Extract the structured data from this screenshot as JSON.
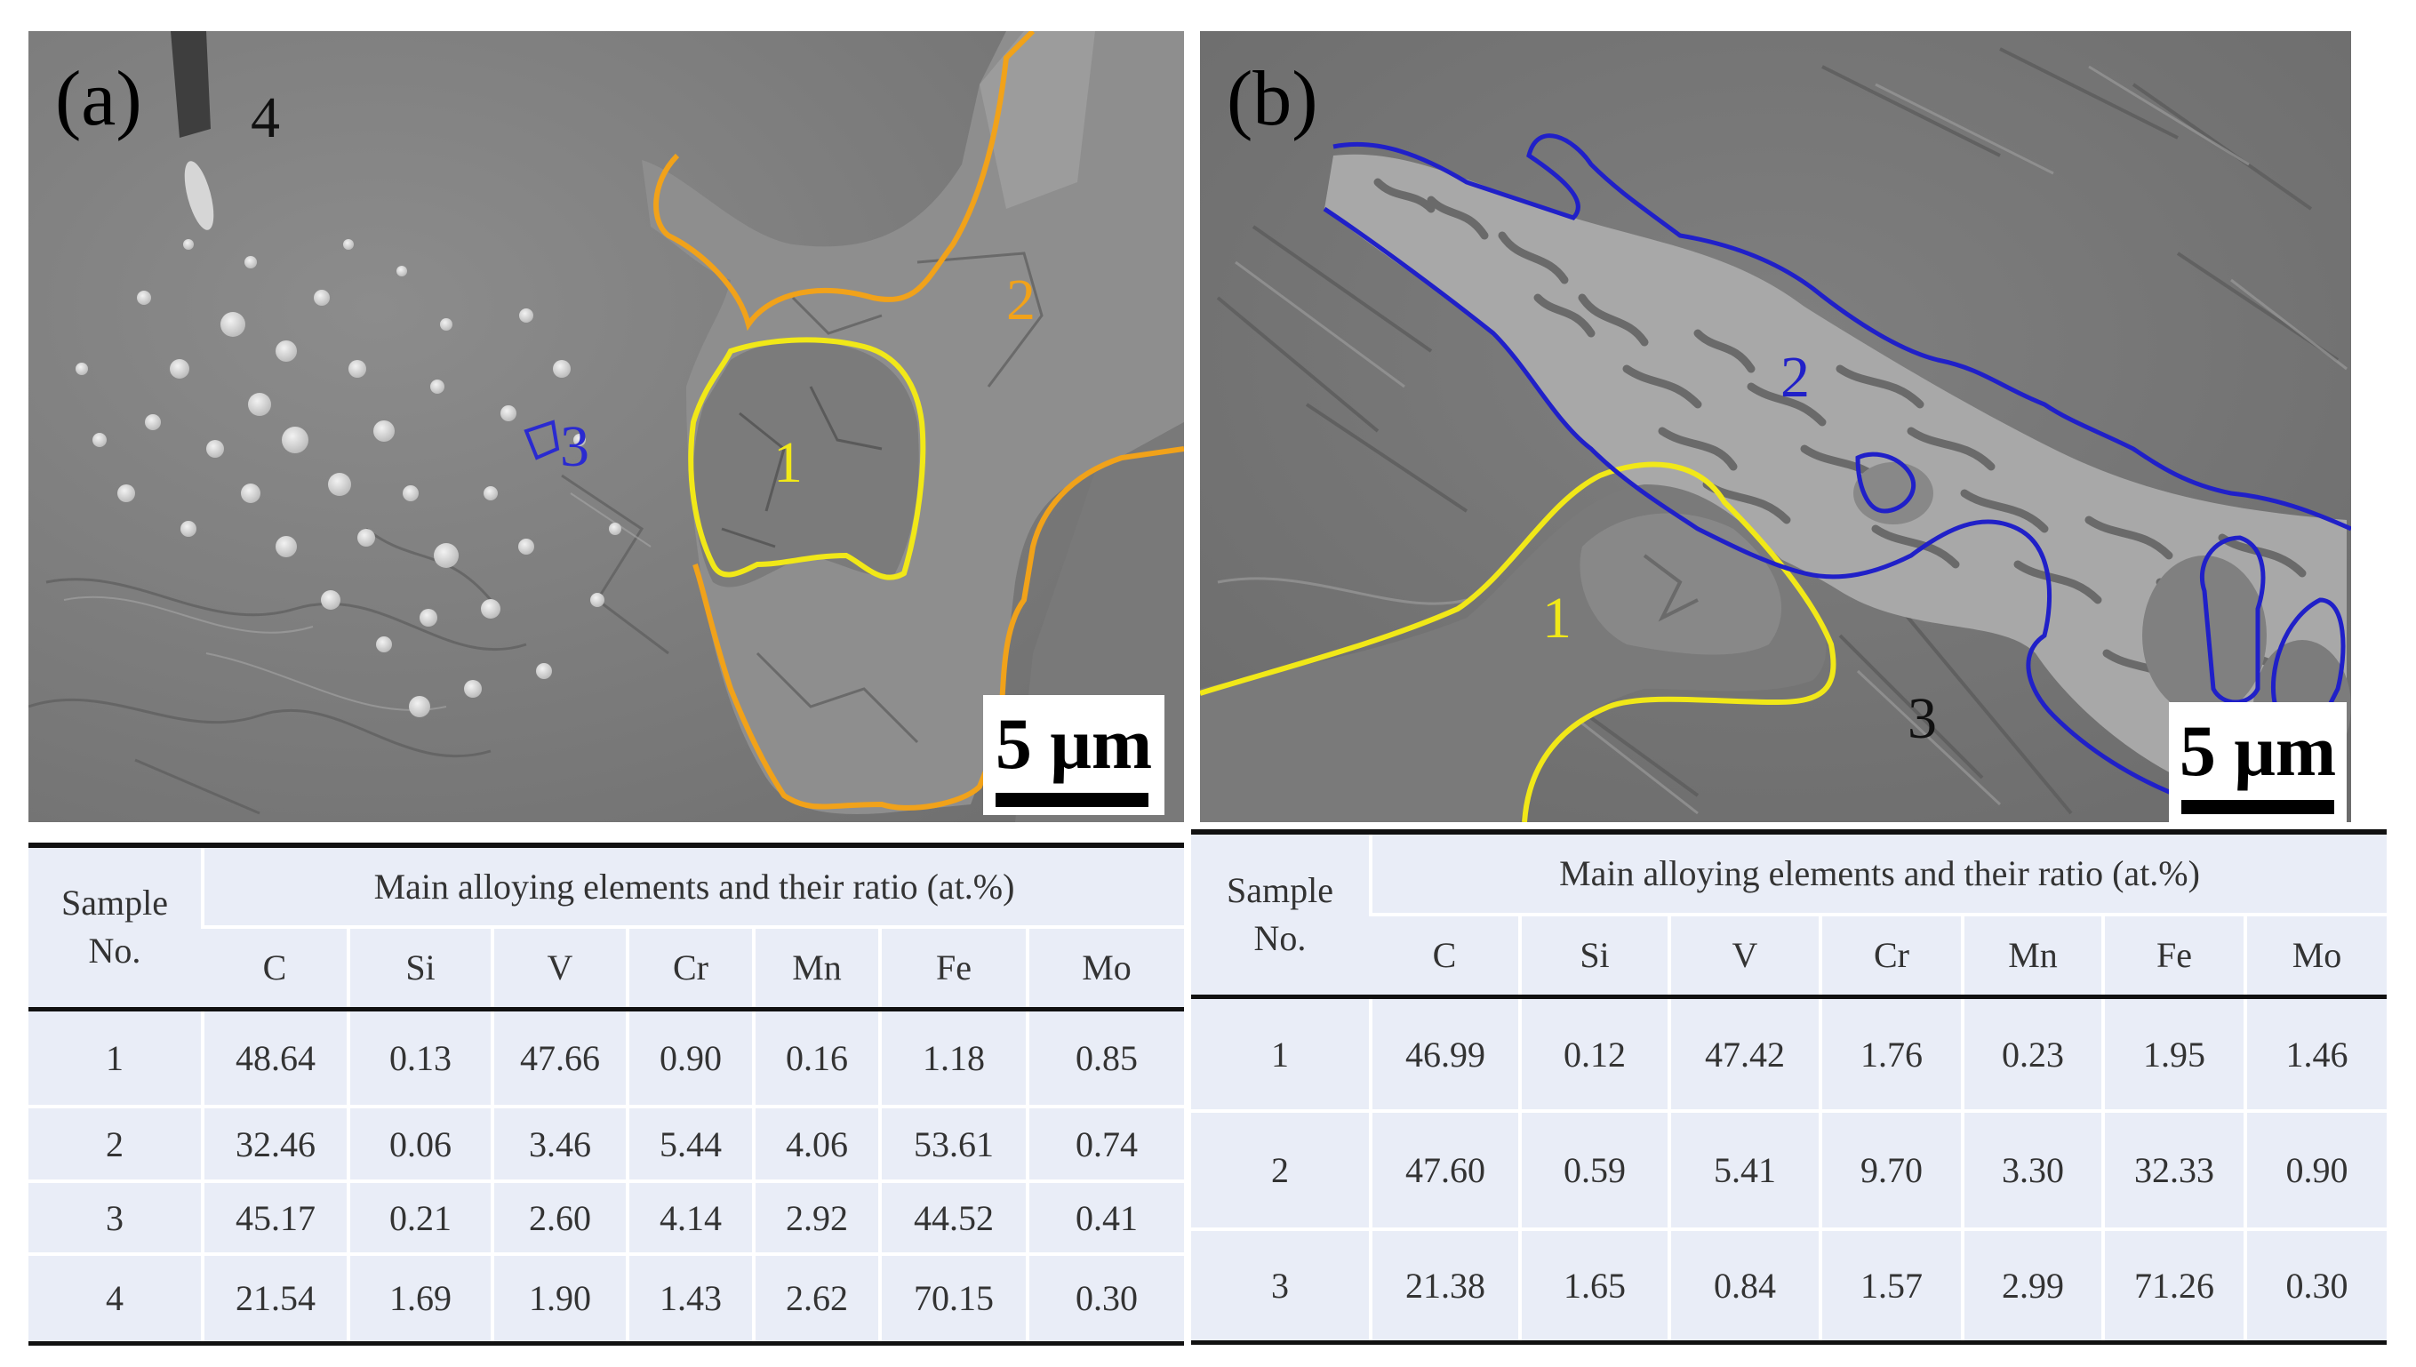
{
  "panel_a": {
    "label": "(a)",
    "regions": [
      "1",
      "2",
      "3",
      "4"
    ],
    "scale": "5 μm",
    "colors": {
      "region_1": "#f1e818",
      "region_2": "#f1a21a",
      "region_3": "#2a2ad0",
      "region_4": "#111111"
    },
    "table": {
      "sample_header": [
        "Sample",
        "No."
      ],
      "group_header": "Main alloying elements and their ratio (at.%)",
      "elements": [
        "C",
        "Si",
        "V",
        "Cr",
        "Mn",
        "Fe",
        "Mo"
      ],
      "rows": [
        {
          "no": "1",
          "values": [
            "48.64",
            "0.13",
            "47.66",
            "0.90",
            "0.16",
            "1.18",
            "0.85"
          ]
        },
        {
          "no": "2",
          "values": [
            "32.46",
            "0.06",
            "3.46",
            "5.44",
            "4.06",
            "53.61",
            "0.74"
          ]
        },
        {
          "no": "3",
          "values": [
            "45.17",
            "0.21",
            "2.60",
            "4.14",
            "2.92",
            "44.52",
            "0.41"
          ]
        },
        {
          "no": "4",
          "values": [
            "21.54",
            "1.69",
            "1.90",
            "1.43",
            "2.62",
            "70.15",
            "0.30"
          ]
        }
      ]
    }
  },
  "panel_b": {
    "label": "(b)",
    "regions": [
      "1",
      "2",
      "3"
    ],
    "scale": "5 μm",
    "colors": {
      "region_1": "#f1e818",
      "region_2": "#2020c8",
      "region_3": "#111111"
    },
    "table": {
      "sample_header": [
        "Sample",
        "No."
      ],
      "group_header": "Main alloying elements and their ratio (at.%)",
      "elements": [
        "C",
        "Si",
        "V",
        "Cr",
        "Mn",
        "Fe",
        "Mo"
      ],
      "rows": [
        {
          "no": "1",
          "values": [
            "46.99",
            "0.12",
            "47.42",
            "1.76",
            "0.23",
            "1.95",
            "1.46"
          ]
        },
        {
          "no": "2",
          "values": [
            "47.60",
            "0.59",
            "5.41",
            "9.70",
            "3.30",
            "32.33",
            "0.90"
          ]
        },
        {
          "no": "3",
          "values": [
            "21.38",
            "1.65",
            "0.84",
            "1.57",
            "2.99",
            "71.26",
            "0.30"
          ]
        }
      ]
    }
  }
}
